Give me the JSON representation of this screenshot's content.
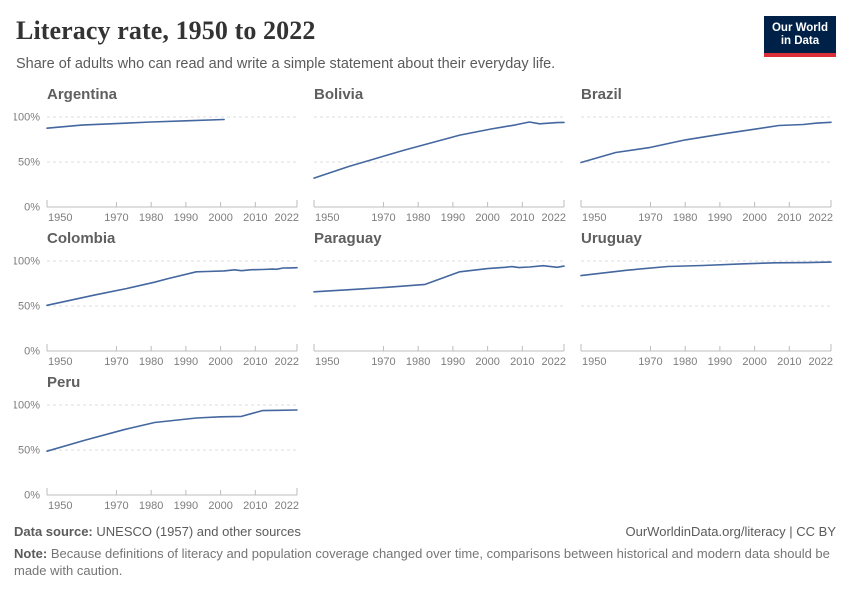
{
  "header": {
    "title": "Literacy rate, 1950 to 2022",
    "subtitle": "Share of adults who can read and write a simple statement about their everyday life."
  },
  "logo": {
    "line1": "Our World",
    "line2": "in Data"
  },
  "footer": {
    "source_label": "Data source:",
    "source_text": "UNESCO (1957) and other sources",
    "link": "OurWorldinData.org/literacy | CC BY",
    "note_label": "Note:",
    "note_text": "Because definitions of literacy and population coverage changed over time, comparisons between historical and modern data should be made with caution."
  },
  "colors": {
    "line": "#44679f",
    "navy": "#002147",
    "red": "#dc2e38",
    "grid": "#dcdcdc",
    "axis": "#bcbcbc",
    "tick_label": "#7d7d7d",
    "entity_title": "#5f5f5f"
  },
  "chart_data": {
    "type": "line",
    "title": "Literacy rate, 1950 to 2022",
    "subtitle": "Share of adults who can read and write a simple statement about their everyday life.",
    "unit": "%",
    "x_domain": [
      1950,
      2022
    ],
    "y_domain": [
      0,
      100
    ],
    "x_ticks": [
      1950,
      1970,
      1980,
      1990,
      2000,
      2010,
      2022
    ],
    "y_tick_values": [
      0,
      50,
      100
    ],
    "y_tick_labels": [
      "0%",
      "50%",
      "100%"
    ],
    "grid": "dashed horizontal at 50% and 100%, solid axis at 0%",
    "legend_position": "none (small multiples, one series per panel)",
    "charts": [
      {
        "name": "Argentina",
        "show_y_labels": true,
        "points": [
          [
            1950,
            87.6
          ],
          [
            1960,
            91.0
          ],
          [
            1970,
            92.7
          ],
          [
            1980,
            94.4
          ],
          [
            1991,
            95.9
          ],
          [
            2001,
            97.2
          ]
        ]
      },
      {
        "name": "Bolivia",
        "show_y_labels": false,
        "points": [
          [
            1950,
            32.1
          ],
          [
            1960,
            45.0
          ],
          [
            1976,
            63.2
          ],
          [
            1992,
            79.9
          ],
          [
            2001,
            86.7
          ],
          [
            2008,
            91.2
          ],
          [
            2012,
            94.5
          ],
          [
            2015,
            92.5
          ],
          [
            2020,
            93.8
          ],
          [
            2022,
            94.0
          ]
        ]
      },
      {
        "name": "Brazil",
        "show_y_labels": false,
        "points": [
          [
            1950,
            49.4
          ],
          [
            1960,
            60.6
          ],
          [
            1970,
            66.2
          ],
          [
            1980,
            74.6
          ],
          [
            1991,
            81.3
          ],
          [
            2000,
            86.4
          ],
          [
            2007,
            90.5
          ],
          [
            2014,
            91.7
          ],
          [
            2018,
            93.2
          ],
          [
            2022,
            94.1
          ]
        ]
      },
      {
        "name": "Colombia",
        "show_y_labels": true,
        "points": [
          [
            1950,
            50.8
          ],
          [
            1964,
            62.5
          ],
          [
            1973,
            69.5
          ],
          [
            1981,
            76.5
          ],
          [
            1985,
            80.5
          ],
          [
            1993,
            88.0
          ],
          [
            1996,
            88.3
          ],
          [
            2001,
            89.0
          ],
          [
            2004,
            90.2
          ],
          [
            2006,
            89.2
          ],
          [
            2009,
            90.3
          ],
          [
            2012,
            90.6
          ],
          [
            2015,
            91.0
          ],
          [
            2016,
            90.8
          ],
          [
            2018,
            92.2
          ],
          [
            2020,
            92.3
          ],
          [
            2022,
            92.6
          ]
        ]
      },
      {
        "name": "Paraguay",
        "show_y_labels": false,
        "points": [
          [
            1950,
            65.8
          ],
          [
            1962,
            68.5
          ],
          [
            1972,
            71.0
          ],
          [
            1982,
            74.0
          ],
          [
            1992,
            88.0
          ],
          [
            2000,
            91.5
          ],
          [
            2005,
            93.0
          ],
          [
            2007,
            93.8
          ],
          [
            2009,
            92.7
          ],
          [
            2012,
            93.3
          ],
          [
            2016,
            94.8
          ],
          [
            2020,
            93.0
          ],
          [
            2022,
            94.3
          ]
        ]
      },
      {
        "name": "Uruguay",
        "show_y_labels": false,
        "points": [
          [
            1950,
            83.8
          ],
          [
            1963,
            89.7
          ],
          [
            1975,
            93.9
          ],
          [
            1985,
            95.0
          ],
          [
            1996,
            96.8
          ],
          [
            2006,
            98.0
          ],
          [
            2015,
            98.2
          ],
          [
            2022,
            98.8
          ]
        ]
      },
      {
        "name": "Peru",
        "show_y_labels": true,
        "points": [
          [
            1950,
            48.7
          ],
          [
            1961,
            61.0
          ],
          [
            1972,
            72.5
          ],
          [
            1981,
            80.5
          ],
          [
            1993,
            85.5
          ],
          [
            2000,
            86.9
          ],
          [
            2006,
            87.3
          ],
          [
            2012,
            93.8
          ],
          [
            2017,
            94.1
          ],
          [
            2022,
            94.4
          ]
        ]
      }
    ]
  }
}
